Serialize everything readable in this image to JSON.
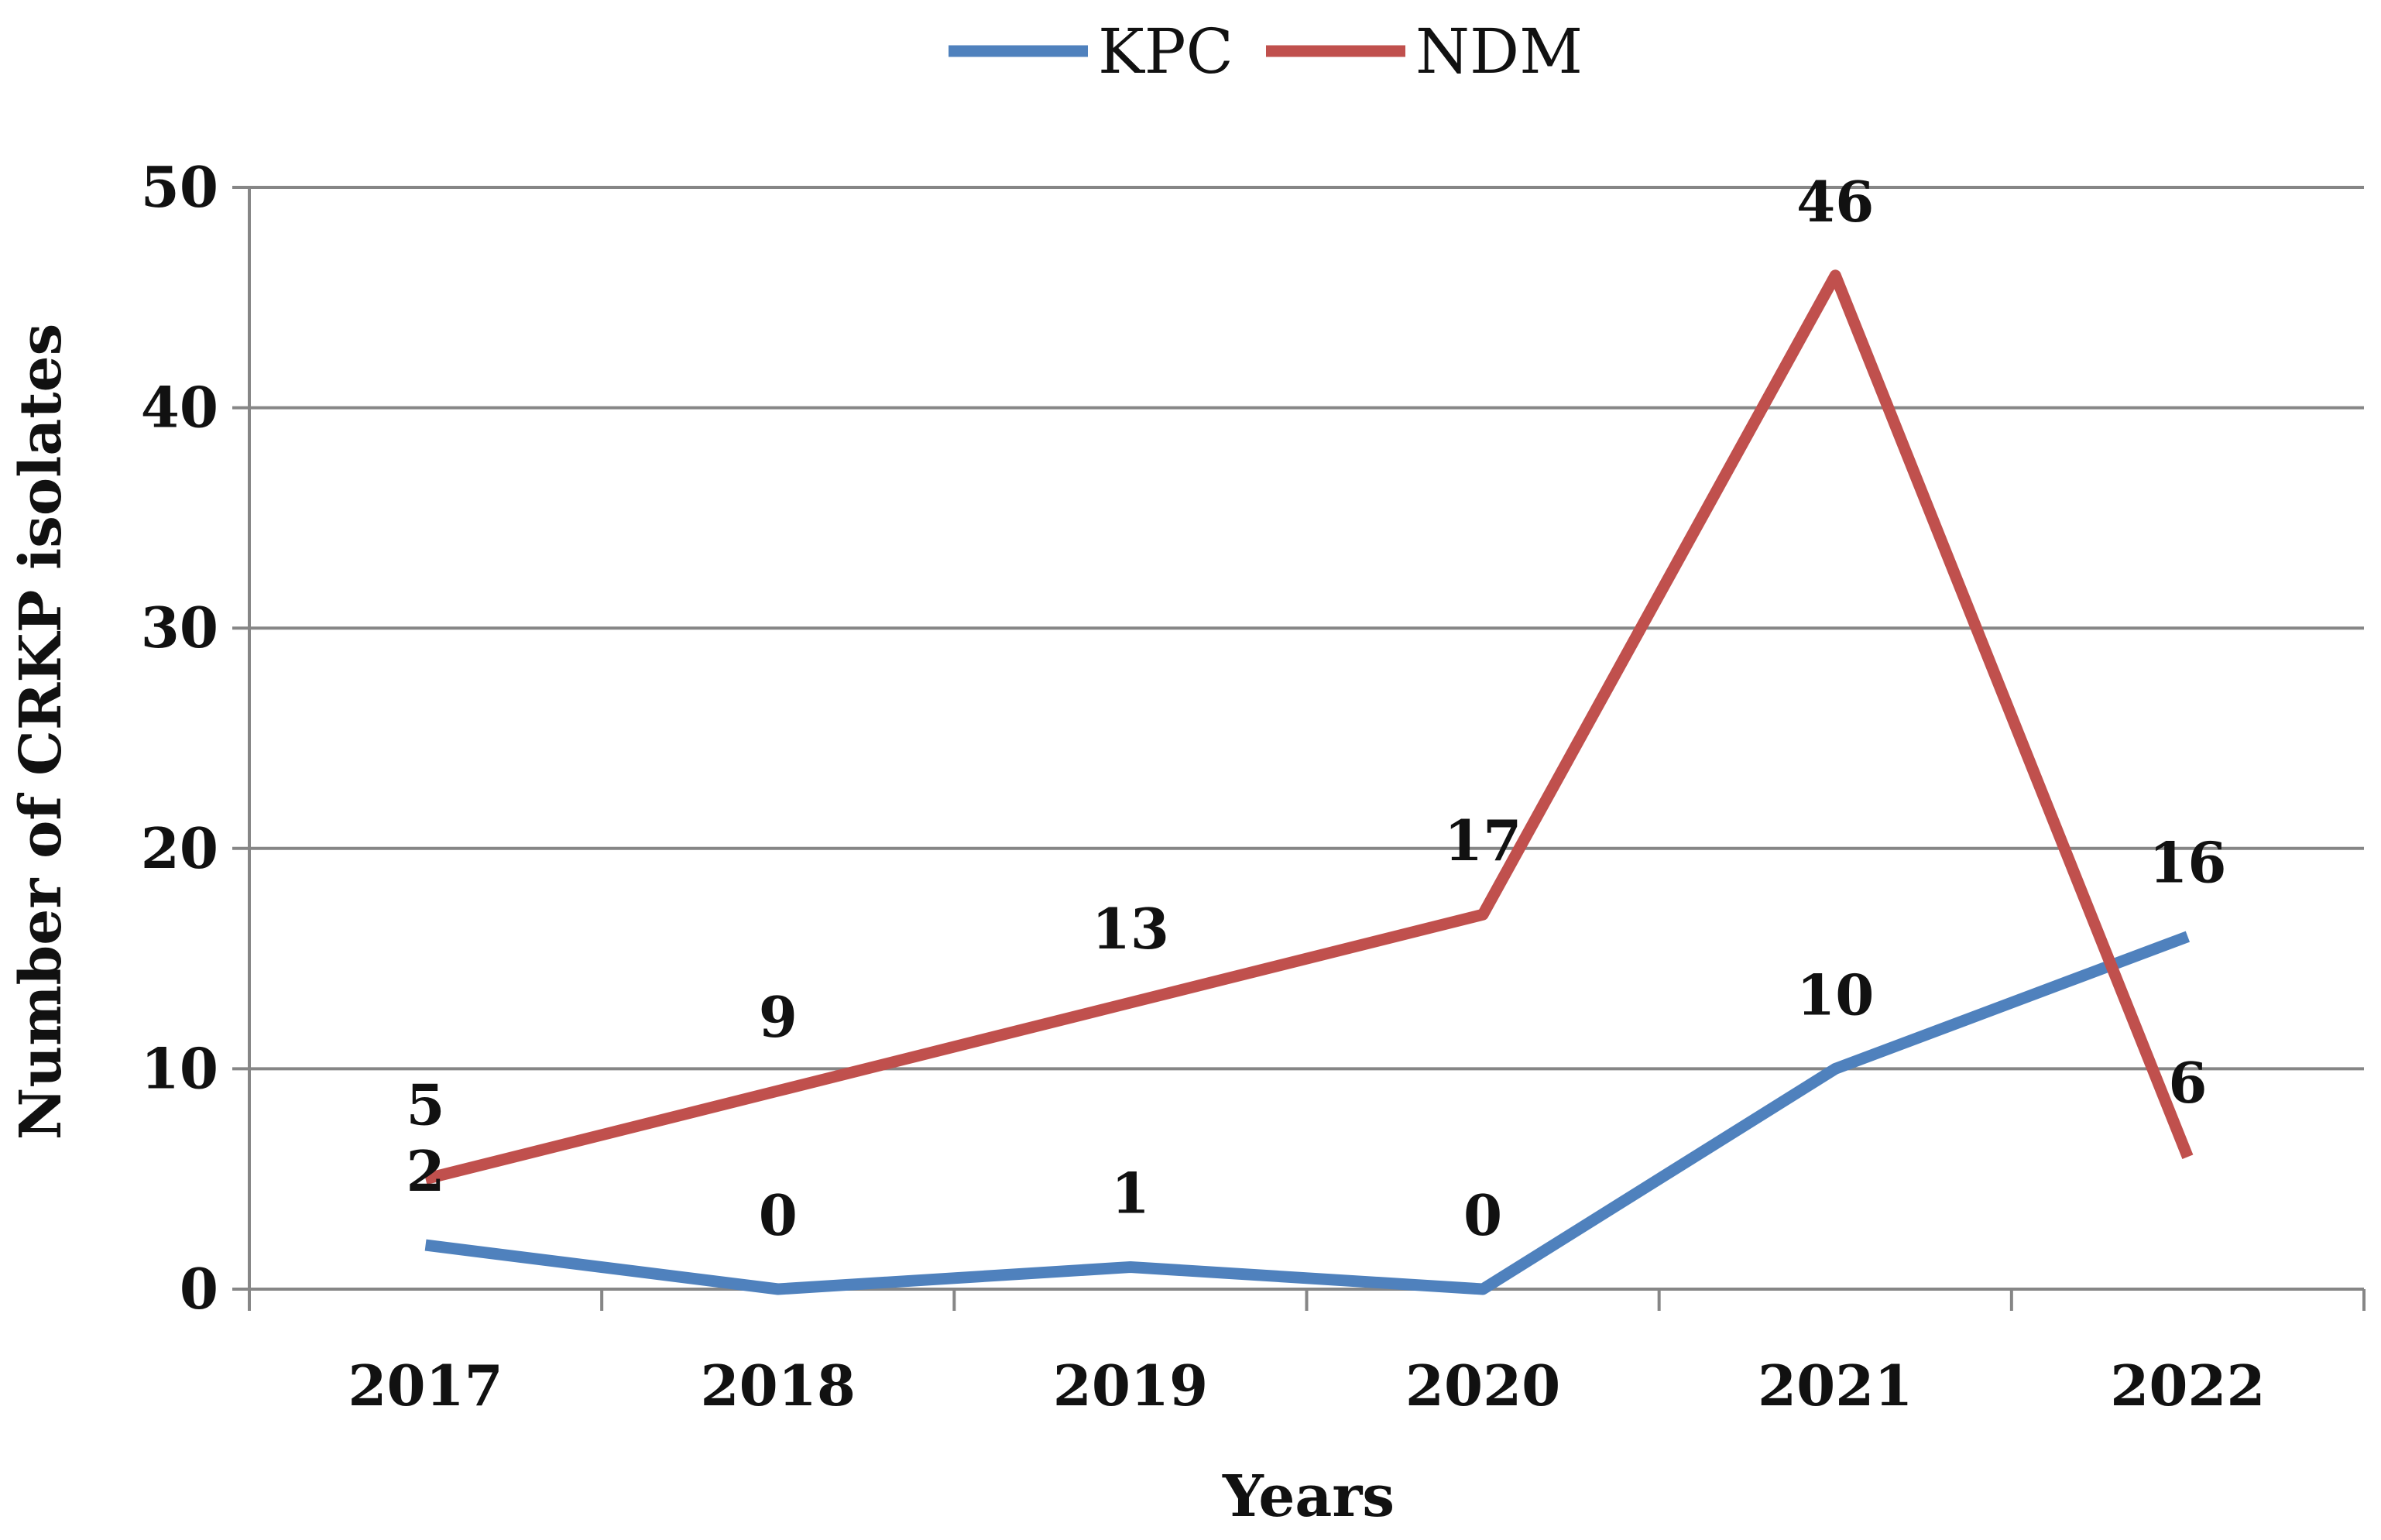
{
  "chart_data": {
    "type": "line",
    "title": "",
    "xlabel": "Years",
    "ylabel": "Number of CRKP isolates",
    "categories": [
      "2017",
      "2018",
      "2019",
      "2020",
      "2021",
      "2022"
    ],
    "ylim": [
      0,
      50
    ],
    "yticks": [
      0,
      10,
      20,
      30,
      40,
      50
    ],
    "grid": true,
    "legend_position": "top-center",
    "series": [
      {
        "name": "KPC",
        "color": "#4f81bd",
        "values": [
          2,
          0,
          1,
          0,
          10,
          16
        ]
      },
      {
        "name": "NDM",
        "color": "#c0504d",
        "values": [
          5,
          9,
          13,
          17,
          46,
          6
        ]
      }
    ]
  }
}
